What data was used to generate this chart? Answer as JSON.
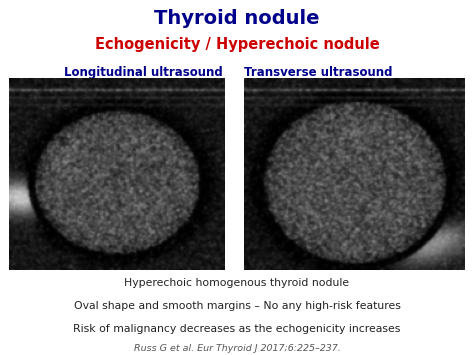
{
  "title": "Thyroid nodule",
  "title_color": "#00008B",
  "subtitle": "Echogenicity / Hyperechoic nodule",
  "subtitle_color": "#CC0000",
  "label_left": "Longitudinal ultrasound",
  "label_right": "Transverse ultrasound",
  "label_color": "#00008B",
  "caption_lines": [
    "Hyperechoic homogenous thyroid nodule",
    "Oval shape and smooth margins – No any high-risk features",
    "Risk of malignancy decreases as the echogenicity increases"
  ],
  "caption_color": "#222222",
  "reference": "Russ G et al. Eur Thyroid J 2017;6:225–237.",
  "reference_color": "#555555",
  "bg_color": "#ffffff"
}
